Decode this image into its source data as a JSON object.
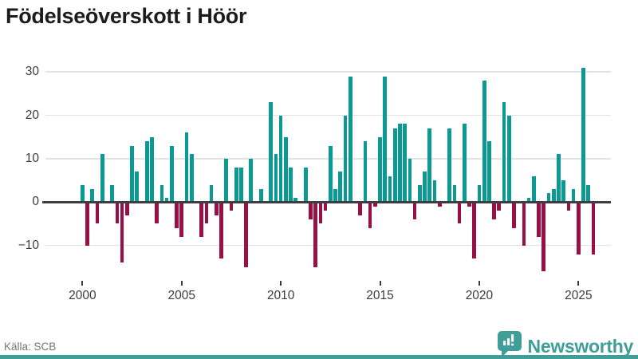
{
  "title": "Födelseöverskott i Höör",
  "source": "Källa: SCB",
  "branding": {
    "logo_text": "Newsworthy",
    "logo_icon": "bar-chart-badge-icon",
    "brand_color": "#3f9e97"
  },
  "colors": {
    "positive_bar": "#0b9a93",
    "negative_bar": "#9b0f47",
    "zero_axis": "#3d3d42",
    "gridline": "#e2e2e2",
    "text_dark": "#1c1c1c",
    "tick_text": "#3c3c3c"
  },
  "chart_data": {
    "type": "bar",
    "title": "Födelseöverskott i Höör",
    "frequency": "quarterly",
    "x_start": "2000 Q1",
    "x_end": "2025 Q4",
    "x_tick_labels": [
      "2000",
      "2005",
      "2010",
      "2015",
      "2020",
      "2025"
    ],
    "y_tick_labels": [
      "30",
      "20",
      "10",
      "0",
      "−10"
    ],
    "y_ticks": [
      30,
      20,
      10,
      0,
      -10
    ],
    "ylim": [
      -17.5,
      32
    ],
    "grid": true,
    "legend": "none",
    "positive_color": "#0b9a93",
    "negative_color": "#9b0f47",
    "series": [
      {
        "values": [
          4,
          -10,
          3,
          -5,
          11,
          0,
          4,
          -5,
          -14,
          -3,
          13,
          7,
          0,
          14,
          15,
          -5,
          4,
          1,
          13,
          -6,
          -8,
          16,
          11,
          0,
          -8,
          -5,
          4,
          -3,
          -13,
          10,
          -2,
          8,
          8,
          -15,
          10,
          0,
          3,
          0,
          23,
          11,
          20,
          15,
          8,
          1,
          0,
          8,
          -4,
          -15,
          -5,
          -2,
          13,
          3,
          7,
          20,
          29,
          0,
          -3,
          14,
          -6,
          -1,
          15,
          29,
          6,
          17,
          18,
          18,
          10,
          -4,
          4,
          7,
          17,
          5,
          -1,
          0,
          17,
          4,
          -5,
          18,
          -1,
          -13,
          4,
          28,
          14,
          -4,
          -2,
          23,
          20,
          -6,
          0,
          -10,
          1,
          6,
          -8,
          -16,
          2,
          3,
          11,
          5,
          -2,
          3,
          -12,
          31,
          4,
          -12
        ]
      }
    ]
  }
}
